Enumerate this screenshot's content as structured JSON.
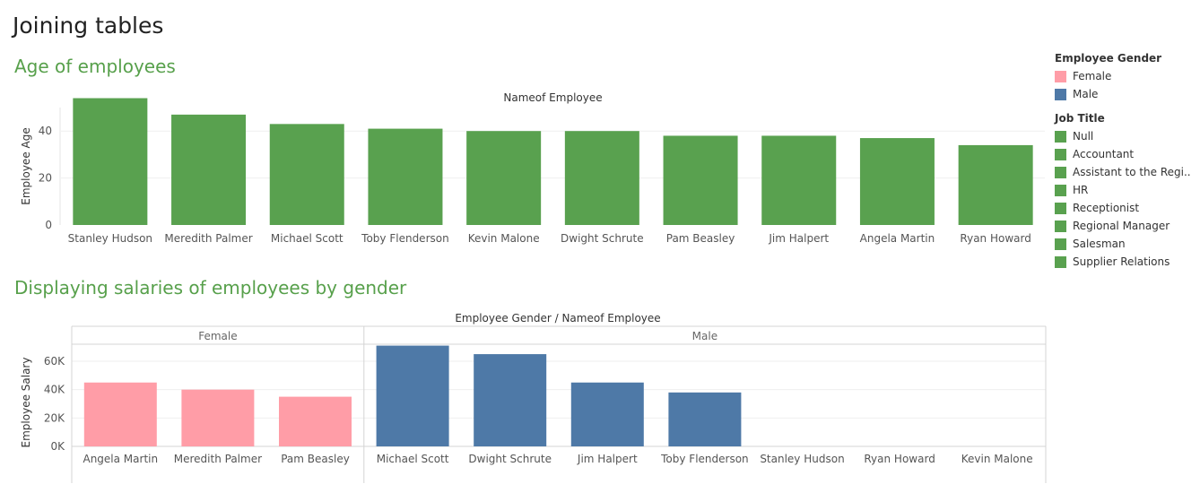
{
  "dashboard": {
    "title": "Joining tables"
  },
  "colors": {
    "title_green": "#57a04b",
    "bar_green": "#59a14f",
    "female": "#ff9da7",
    "male": "#4e79a7"
  },
  "legends": {
    "gender": {
      "title": "Employee Gender",
      "items": [
        {
          "label": "Female",
          "color": "#ff9da7"
        },
        {
          "label": "Male",
          "color": "#4e79a7"
        }
      ]
    },
    "job_title": {
      "title": "Job Title",
      "items": [
        {
          "label": "Null",
          "color": "#59a14f"
        },
        {
          "label": "Accountant",
          "color": "#59a14f"
        },
        {
          "label": "Assistant to the Regi..",
          "color": "#59a14f"
        },
        {
          "label": "HR",
          "color": "#59a14f"
        },
        {
          "label": "Receptionist",
          "color": "#59a14f"
        },
        {
          "label": "Regional Manager",
          "color": "#59a14f"
        },
        {
          "label": "Salesman",
          "color": "#59a14f"
        },
        {
          "label": "Supplier Relations",
          "color": "#59a14f"
        }
      ]
    }
  },
  "chart_data": [
    {
      "type": "bar",
      "title": "Age of employees",
      "xlabel": "Nameof Employee",
      "ylabel": "Employee Age",
      "yticks": [
        "0",
        "20",
        "40"
      ],
      "ylim": [
        0,
        50
      ],
      "grid": true,
      "categories": [
        "Stanley Hudson",
        "Meredith Palmer",
        "Michael Scott",
        "Toby Flenderson",
        "Kevin Malone",
        "Dwight Schrute",
        "Pam Beasley",
        "Jim Halpert",
        "Angela Martin",
        "Ryan Howard"
      ],
      "values": [
        54,
        47,
        43,
        41,
        40,
        40,
        38,
        38,
        37,
        34
      ]
    },
    {
      "type": "bar",
      "title": "Displaying salaries of employees by gender",
      "xlabel": "Employee Gender  /  Nameof Employee",
      "ylabel": "Employee Salary",
      "yticks": [
        "0K",
        "20K",
        "40K",
        "60K"
      ],
      "ylim": [
        0,
        72000
      ],
      "grid": true,
      "groups": [
        {
          "name": "Female",
          "categories": [
            "Angela Martin",
            "Meredith Palmer",
            "Pam Beasley"
          ],
          "values": [
            45000,
            40000,
            35000
          ]
        },
        {
          "name": "Male",
          "categories": [
            "Michael Scott",
            "Dwight Schrute",
            "Jim Halpert",
            "Toby Flenderson",
            "Stanley Hudson",
            "Ryan Howard",
            "Kevin Malone"
          ],
          "values": [
            71000,
            65000,
            45000,
            38000,
            null,
            null,
            null
          ]
        }
      ]
    }
  ]
}
